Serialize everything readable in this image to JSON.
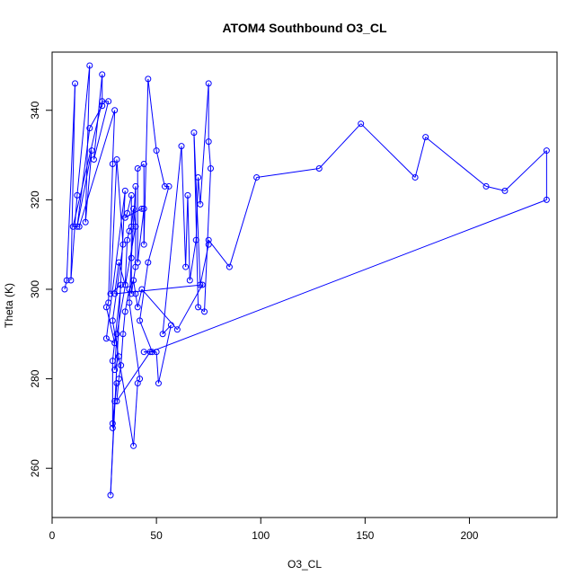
{
  "chart_data": {
    "type": "line",
    "title": "ATOM4 Southbound O3_CL",
    "xlabel": "O3_CL",
    "ylabel": "Theta (K)",
    "xlim": [
      0,
      242
    ],
    "ylim": [
      249,
      353
    ],
    "x_ticks": [
      0,
      50,
      100,
      150,
      200
    ],
    "y_ticks": [
      260,
      280,
      300,
      320,
      340
    ],
    "grid": false,
    "line_color": "#0000ff",
    "marker": "open-circle",
    "series": [
      {
        "points": [
          [
            6,
            300
          ],
          [
            7,
            302
          ],
          [
            11,
            346
          ],
          [
            9,
            302
          ],
          [
            12,
            321
          ],
          [
            18,
            350
          ],
          [
            16,
            315
          ],
          [
            19,
            331
          ],
          [
            12,
            314
          ],
          [
            18,
            336
          ],
          [
            24,
            341
          ],
          [
            24,
            348
          ],
          [
            20,
            329
          ],
          [
            27,
            342
          ],
          [
            24,
            342
          ],
          [
            10,
            314
          ],
          [
            13,
            314
          ],
          [
            30,
            340
          ],
          [
            29,
            328
          ],
          [
            27,
            297
          ],
          [
            26,
            296
          ],
          [
            30,
            288
          ],
          [
            26,
            289
          ],
          [
            35,
            322
          ],
          [
            28,
            254
          ],
          [
            30,
            275
          ],
          [
            29,
            270
          ],
          [
            31,
            279
          ],
          [
            29,
            269
          ],
          [
            29,
            284
          ],
          [
            33,
            301
          ],
          [
            28,
            299
          ],
          [
            31,
            329
          ],
          [
            34,
            310
          ],
          [
            29,
            293
          ],
          [
            39,
            265
          ],
          [
            41,
            279
          ],
          [
            42,
            280
          ],
          [
            37,
            297
          ],
          [
            38,
            307
          ],
          [
            40,
            323
          ],
          [
            40,
            305
          ],
          [
            38,
            299
          ],
          [
            38,
            321
          ],
          [
            36,
            317
          ],
          [
            35,
            316
          ],
          [
            43,
            318
          ],
          [
            44,
            318
          ],
          [
            41,
            306
          ],
          [
            41,
            327
          ],
          [
            44,
            328
          ],
          [
            44,
            310
          ],
          [
            46,
            347
          ],
          [
            50,
            331
          ],
          [
            54,
            323
          ],
          [
            56,
            323
          ],
          [
            46,
            306
          ],
          [
            42,
            293
          ],
          [
            48,
            286
          ],
          [
            44,
            286
          ],
          [
            50,
            286
          ],
          [
            51,
            279
          ],
          [
            57,
            292
          ],
          [
            53,
            290
          ],
          [
            62,
            332
          ],
          [
            64,
            305
          ],
          [
            65,
            321
          ],
          [
            66,
            302
          ],
          [
            69,
            311
          ],
          [
            70,
            325
          ],
          [
            71,
            319
          ],
          [
            75,
            346
          ],
          [
            75,
            333
          ],
          [
            76,
            327
          ],
          [
            73,
            295
          ],
          [
            70,
            296
          ],
          [
            68,
            335
          ],
          [
            71,
            301
          ],
          [
            75,
            310
          ],
          [
            75,
            311
          ],
          [
            85,
            305
          ],
          [
            98,
            325
          ],
          [
            128,
            327
          ],
          [
            148,
            337
          ],
          [
            174,
            325
          ],
          [
            179,
            334
          ],
          [
            208,
            323
          ],
          [
            217,
            322
          ],
          [
            237,
            331
          ],
          [
            237,
            320
          ],
          [
            47,
            286
          ],
          [
            31,
            275
          ],
          [
            32,
            280
          ],
          [
            33,
            283
          ],
          [
            34,
            290
          ],
          [
            35,
            295
          ],
          [
            37,
            300
          ],
          [
            39,
            302
          ],
          [
            40,
            299
          ],
          [
            41,
            296
          ],
          [
            43,
            300
          ],
          [
            60,
            291
          ],
          [
            72,
            301
          ],
          [
            30,
            299
          ],
          [
            32,
            306
          ],
          [
            35,
            301
          ],
          [
            36,
            311
          ],
          [
            37,
            313
          ],
          [
            38,
            314
          ],
          [
            39,
            318
          ],
          [
            40,
            314
          ],
          [
            31,
            290
          ],
          [
            30,
            282
          ],
          [
            32,
            285
          ]
        ]
      }
    ]
  }
}
